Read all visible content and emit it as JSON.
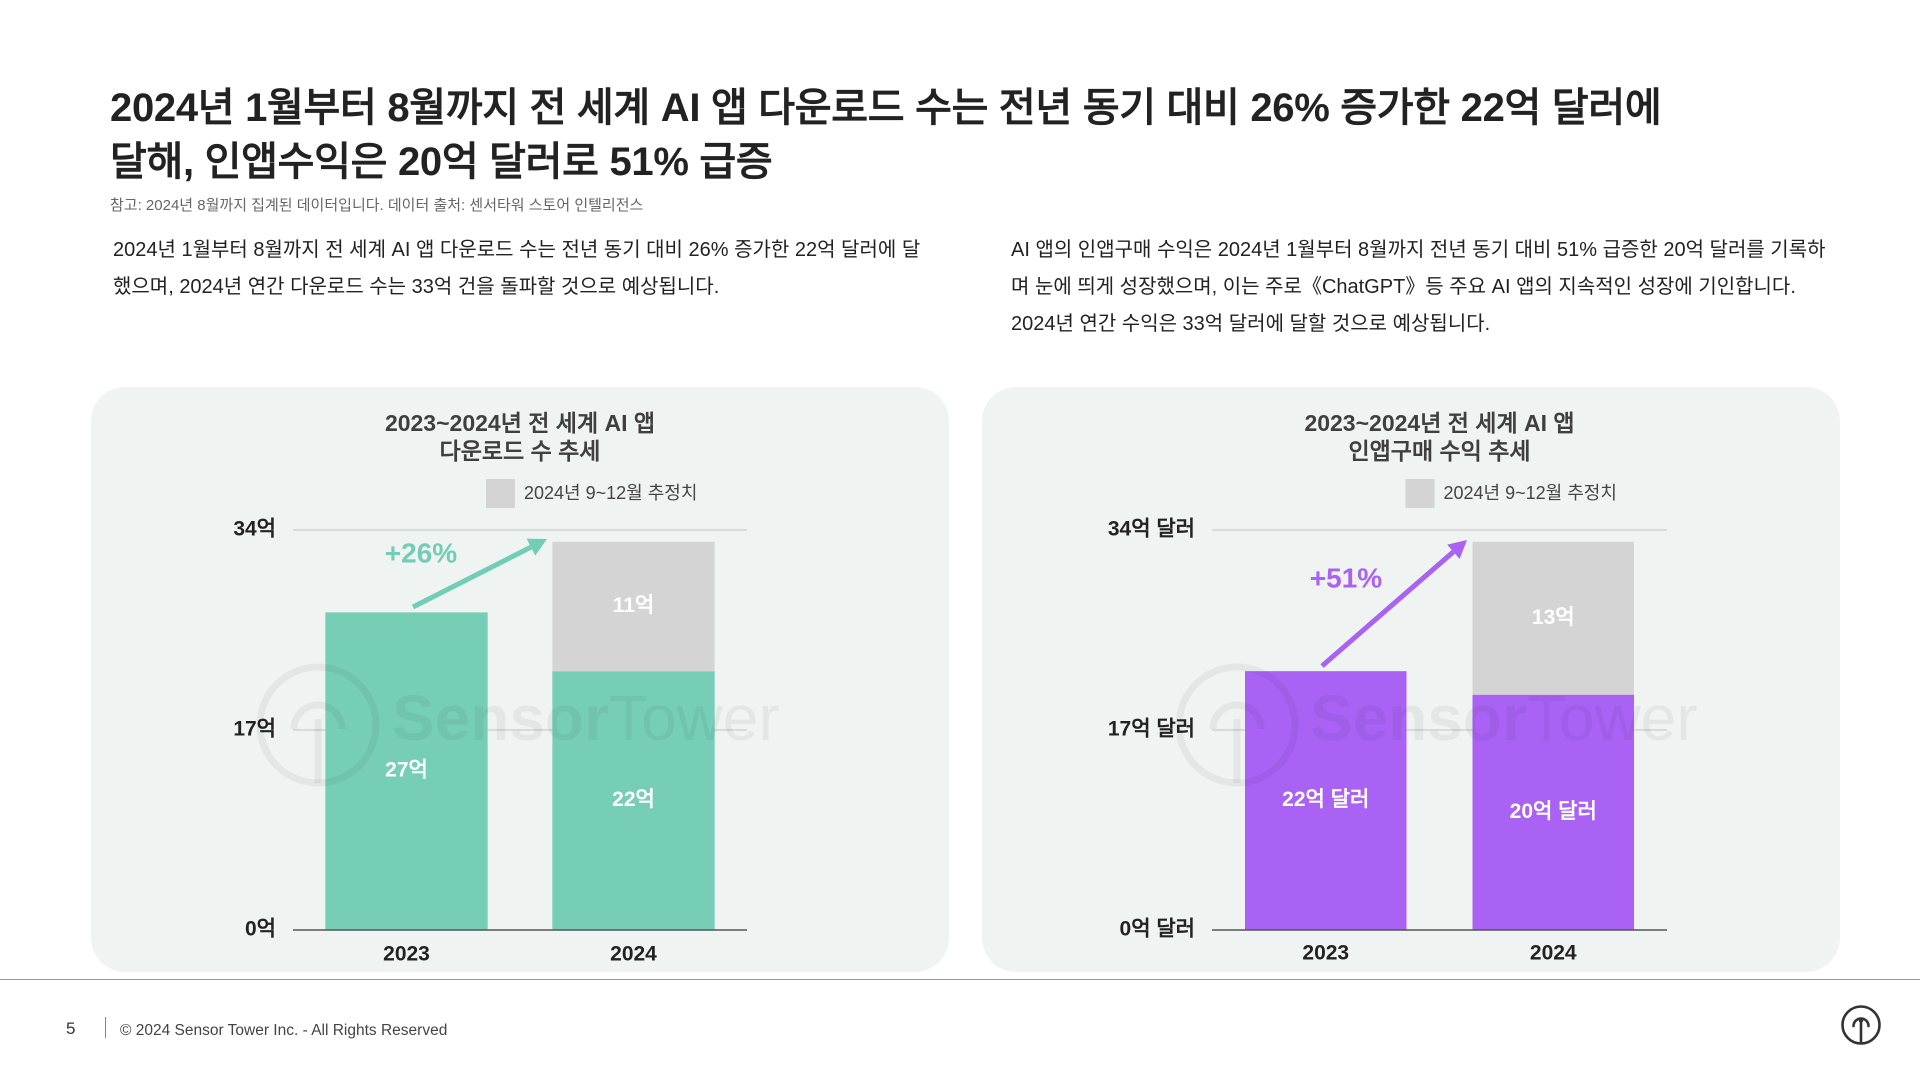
{
  "title": {
    "line1": "2024년 1월부터 8월까지 전 세계 AI 앱 다운로드 수는 전년 동기 대비 26% 증가한 22억 달러에",
    "line2": "달해, 인앱수익은 20억 달러로 51% 급증"
  },
  "note": "참고: 2024년 8월까지 집계된 데이터입니다. 데이터 출처: 센서타워 스토어 인텔리전스",
  "paragraphs": {
    "left": "2024년 1월부터 8월까지 전 세계 AI 앱 다운로드 수는 전년 동기 대비 26% 증가한 22억 달러에 달했으며, 2024년 연간 다운로드 수는 33억 건을 돌파할 것으로 예상됩니다.",
    "right": "AI 앱의 인앱구매 수익은 2024년 1월부터 8월까지 전년 동기 대비 51% 급증한 20억 달러를 기록하며 눈에 띄게 성장했으며, 이는 주로《ChatGPT》등 주요 AI 앱의 지속적인 성장에 기인합니다. 2024년 연간 수익은 33억 달러에 달할 것으로 예상됩니다."
  },
  "colors": {
    "panel_background": "#eff4f3"
  },
  "watermark": {
    "part1": "Sensor",
    "part2": "Tower"
  },
  "chart_data": [
    {
      "type": "bar",
      "stacked": true,
      "title": [
        "2023~2024년 전 세계 AI 앱",
        "다운로드 수 추세"
      ],
      "categories": [
        "2023",
        "2024"
      ],
      "series": [
        {
          "values": [
            27,
            22
          ],
          "labels": [
            "27억",
            "22억"
          ],
          "color": "#77ceb7"
        },
        {
          "name": "2024년 9~12월 추정치",
          "values": [
            0,
            11
          ],
          "labels": [
            null,
            "11억"
          ],
          "color": "#d4d4d4"
        }
      ],
      "yticks": [
        0,
        17,
        34
      ],
      "ytick_labels": [
        "0억",
        "17억",
        "34억"
      ],
      "ylim": [
        0,
        34
      ],
      "grid": true,
      "legend_position": "top",
      "annotation": {
        "text": "+26%",
        "color": "#72cdb5"
      }
    },
    {
      "type": "bar",
      "stacked": true,
      "title": [
        "2023~2024년 전 세계 AI 앱",
        "인앱구매 수익 추세"
      ],
      "categories": [
        "2023",
        "2024"
      ],
      "series": [
        {
          "values": [
            22,
            20
          ],
          "labels": [
            "22억 달러",
            "20억 달러"
          ],
          "color": "#a962f4"
        },
        {
          "name": "2024년 9~12월 추정치",
          "values": [
            0,
            13
          ],
          "labels": [
            null,
            "13억"
          ],
          "color": "#d4d4d4"
        }
      ],
      "yticks": [
        0,
        17,
        34
      ],
      "ytick_labels": [
        "0억 달러",
        "17억 달러",
        "34억 달러"
      ],
      "ylim": [
        0,
        34
      ],
      "grid": true,
      "legend_position": "top",
      "annotation": {
        "text": "+51%",
        "color": "#a962f4"
      }
    }
  ],
  "footer": {
    "page_number": "5",
    "copyright": "© 2024 Sensor Tower Inc. - All Rights Reserved",
    "logo_icon": "sensor-tower-logo-icon"
  }
}
